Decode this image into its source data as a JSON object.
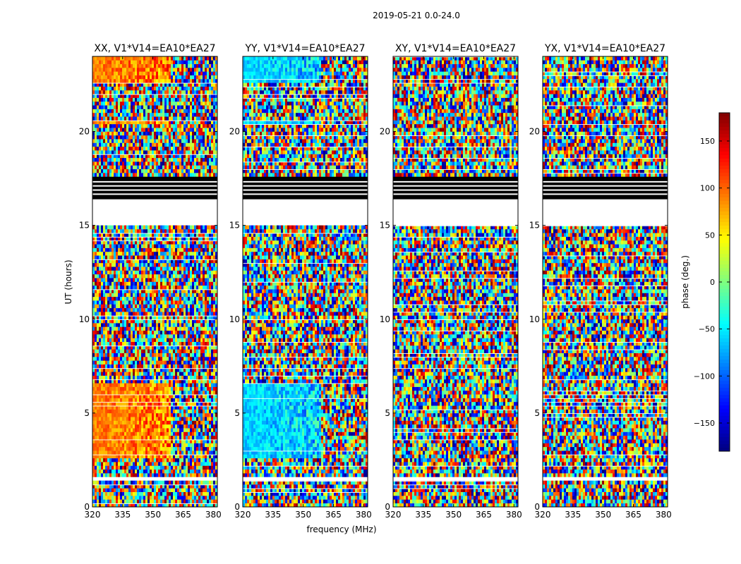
{
  "figure": {
    "suptitle": "2019-05-21 0.0-24.0",
    "shared_xlabel": "frequency (MHz)",
    "shared_ylabel": "UT (hours)"
  },
  "colorbar": {
    "label": "phase (deg.)",
    "range": [
      -180,
      180
    ],
    "ticks": [
      150,
      100,
      50,
      0,
      -50,
      -100,
      -150
    ],
    "tick_labels": [
      "150",
      "100",
      "50",
      "0",
      "−50",
      "−100",
      "−150"
    ],
    "colormap": [
      "#00007f",
      "#0000ff",
      "#007fff",
      "#00ffff",
      "#7fff7f",
      "#ffff00",
      "#ff7f00",
      "#ff0000",
      "#7f0000"
    ]
  },
  "chart_data": [
    {
      "type": "heatmap",
      "title": "XX, V1*V14=EA10*EA27",
      "xlabel": "frequency (MHz)",
      "ylabel": "UT (hours)",
      "xlim": [
        320,
        382
      ],
      "ylim": [
        0,
        24
      ],
      "xticks": [
        320,
        335,
        350,
        365,
        380
      ],
      "yticks": [
        0,
        5,
        10,
        15,
        20
      ],
      "value": "phase (deg.)",
      "coherent_phase_deg": 90,
      "coherent_ut_ranges": [
        [
          2.6,
          6.7
        ],
        [
          20.5,
          20.7
        ],
        [
          22.6,
          24.0
        ]
      ],
      "flagged_ut_ranges": [
        [
          1.4,
          1.6
        ],
        [
          15.1,
          16.5
        ]
      ],
      "zero_ut_ranges": [
        [
          16.5,
          17.6
        ]
      ]
    },
    {
      "type": "heatmap",
      "title": "YY, V1*V14=EA10*EA27",
      "xlabel": "frequency (MHz)",
      "ylabel": "UT (hours)",
      "xlim": [
        320,
        382
      ],
      "ylim": [
        0,
        24
      ],
      "xticks": [
        320,
        335,
        350,
        365,
        380
      ],
      "yticks": [
        0,
        5,
        10,
        15,
        20
      ],
      "value": "phase (deg.)",
      "coherent_phase_deg": -60,
      "coherent_ut_ranges": [
        [
          2.6,
          6.7
        ],
        [
          20.5,
          20.7
        ],
        [
          22.6,
          24.0
        ]
      ],
      "flagged_ut_ranges": [
        [
          1.4,
          1.6
        ],
        [
          15.1,
          16.5
        ]
      ],
      "zero_ut_ranges": [
        [
          16.5,
          17.6
        ]
      ]
    },
    {
      "type": "heatmap",
      "title": "XY, V1*V14=EA10*EA27",
      "xlabel": "frequency (MHz)",
      "ylabel": "UT (hours)",
      "xlim": [
        320,
        382
      ],
      "ylim": [
        0,
        24
      ],
      "xticks": [
        320,
        335,
        350,
        365,
        380
      ],
      "yticks": [
        0,
        5,
        10,
        15,
        20
      ],
      "value": "phase (deg.)",
      "coherent_phase_deg": null,
      "coherent_ut_ranges": [],
      "flagged_ut_ranges": [
        [
          1.4,
          1.6
        ],
        [
          15.1,
          16.5
        ]
      ],
      "zero_ut_ranges": [
        [
          16.5,
          17.6
        ]
      ]
    },
    {
      "type": "heatmap",
      "title": "YX, V1*V14=EA10*EA27",
      "xlabel": "frequency (MHz)",
      "ylabel": "UT (hours)",
      "xlim": [
        320,
        382
      ],
      "ylim": [
        0,
        24
      ],
      "xticks": [
        320,
        335,
        350,
        365,
        380
      ],
      "yticks": [
        0,
        5,
        10,
        15,
        20
      ],
      "value": "phase (deg.)",
      "coherent_phase_deg": null,
      "coherent_ut_ranges": [],
      "flagged_ut_ranges": [
        [
          1.4,
          1.6
        ],
        [
          15.1,
          16.5
        ]
      ],
      "zero_ut_ranges": [
        [
          16.5,
          17.6
        ]
      ]
    }
  ]
}
